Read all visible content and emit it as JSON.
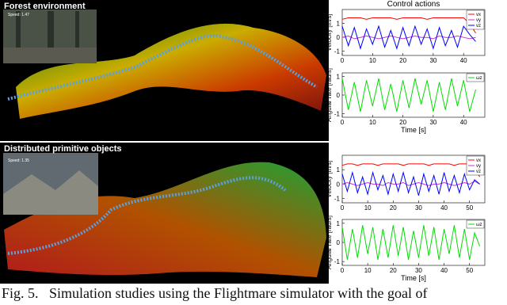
{
  "images": [
    {
      "label": "Forest environment",
      "inset_speed": "Speed: 1.47"
    },
    {
      "label": "Distributed primitive objects",
      "inset_speed": "Speed: 1.35"
    }
  ],
  "chart_data": [
    {
      "type": "line",
      "title": "Control actions",
      "ylabel": "Velocity [m/s]",
      "x": [
        0,
        2,
        4,
        6,
        8,
        10,
        12,
        14,
        16,
        18,
        20,
        22,
        24,
        26,
        28,
        30,
        32,
        34,
        36,
        38,
        40,
        42,
        44
      ],
      "series": [
        {
          "name": "vx",
          "color": "#ff0000",
          "values": [
            1.3,
            1.4,
            1.4,
            1.4,
            1.3,
            1.4,
            1.4,
            1.4,
            1.4,
            1.3,
            1.4,
            1.4,
            1.4,
            1.4,
            1.3,
            1.4,
            1.4,
            1.4,
            1.4,
            1.4,
            1.4,
            1.0,
            0.3
          ]
        },
        {
          "name": "vy",
          "color": "#cc33cc",
          "values": [
            0,
            0.1,
            -0.1,
            0,
            0.1,
            0,
            -0.1,
            0,
            0.1,
            0,
            -0.1,
            0,
            0.1,
            0,
            0,
            -0.1,
            0.1,
            0,
            0,
            0.1,
            0,
            -0.1,
            0
          ]
        },
        {
          "name": "vz",
          "color": "#0000ff",
          "values": [
            0.8,
            -0.6,
            0.7,
            -0.8,
            0.6,
            -0.5,
            0.8,
            -0.7,
            0.5,
            -0.8,
            0.7,
            -0.6,
            0.8,
            -0.5,
            0.6,
            -0.8,
            0.7,
            -0.6,
            0.5,
            -0.7,
            0.8,
            0.2,
            -0.3
          ]
        }
      ],
      "xlim": [
        0,
        47
      ],
      "ylim": [
        -1.3,
        2
      ],
      "xticks": [
        0,
        10,
        20,
        30,
        40
      ],
      "yticks": [
        -1,
        0,
        1
      ]
    },
    {
      "type": "line",
      "ylabel": "Angular rate [rad/s]",
      "xlabel": "Time [s]",
      "x": [
        0,
        2,
        4,
        6,
        8,
        10,
        12,
        14,
        16,
        18,
        20,
        22,
        24,
        26,
        28,
        30,
        32,
        34,
        36,
        38,
        40,
        42,
        44
      ],
      "series": [
        {
          "name": "ωz",
          "color": "#00dd00",
          "values": [
            0.9,
            -0.8,
            0.7,
            -0.9,
            0.8,
            -0.6,
            0.9,
            -0.8,
            0.6,
            -0.9,
            0.8,
            -0.7,
            0.9,
            -0.5,
            0.8,
            -0.9,
            0.7,
            -0.8,
            0.9,
            -0.6,
            0.8,
            -0.9,
            0.3
          ]
        }
      ],
      "xlim": [
        0,
        47
      ],
      "ylim": [
        -1.2,
        1.2
      ],
      "xticks": [
        0,
        10,
        20,
        30,
        40
      ],
      "yticks": [
        -1,
        0,
        1
      ]
    },
    {
      "type": "line",
      "ylabel": "Velocity [m/s]",
      "x": [
        0,
        2,
        4,
        6,
        8,
        10,
        12,
        14,
        16,
        18,
        20,
        22,
        24,
        26,
        28,
        30,
        32,
        34,
        36,
        38,
        40,
        42,
        44,
        46,
        48,
        50,
        52,
        54
      ],
      "series": [
        {
          "name": "vx",
          "color": "#ff0000",
          "values": [
            1.3,
            1.4,
            1.4,
            1.3,
            1.4,
            1.4,
            1.4,
            1.3,
            1.4,
            1.4,
            1.4,
            1.4,
            1.3,
            1.4,
            1.4,
            1.4,
            1.4,
            1.3,
            1.4,
            1.4,
            1.4,
            1.4,
            1.3,
            1.4,
            1.4,
            1.4,
            1.1,
            0.5
          ]
        },
        {
          "name": "vy",
          "color": "#cc33cc",
          "values": [
            0,
            0.1,
            0,
            -0.1,
            0,
            0.1,
            0,
            0,
            -0.1,
            0.1,
            0,
            0,
            0.1,
            -0.1,
            0,
            0.1,
            0,
            -0.1,
            0,
            0,
            0.1,
            0,
            -0.1,
            0,
            0.1,
            0,
            0.2,
            0
          ]
        },
        {
          "name": "vz",
          "color": "#0000ff",
          "values": [
            0.7,
            -0.5,
            0.8,
            -0.6,
            0.5,
            -0.7,
            0.8,
            -0.4,
            0.6,
            -0.7,
            0.7,
            -0.5,
            0.8,
            -0.6,
            0.5,
            -0.8,
            0.7,
            -0.5,
            0.6,
            -0.7,
            0.8,
            -0.5,
            0.6,
            -0.6,
            0.7,
            -0.4,
            0.3,
            0
          ]
        }
      ],
      "xlim": [
        0,
        56
      ],
      "ylim": [
        -1.3,
        2
      ],
      "xticks": [
        0,
        10,
        20,
        30,
        40,
        50
      ],
      "yticks": [
        -1,
        0,
        1
      ]
    },
    {
      "type": "line",
      "ylabel": "Angular rate [rad/s]",
      "xlabel": "Time [s]",
      "x": [
        0,
        2,
        4,
        6,
        8,
        10,
        12,
        14,
        16,
        18,
        20,
        22,
        24,
        26,
        28,
        30,
        32,
        34,
        36,
        38,
        40,
        42,
        44,
        46,
        48,
        50,
        52,
        54
      ],
      "series": [
        {
          "name": "ωz",
          "color": "#00dd00",
          "values": [
            0.8,
            -0.9,
            0.7,
            -0.8,
            0.9,
            -0.6,
            0.8,
            -0.9,
            0.7,
            -0.8,
            0.9,
            -0.7,
            0.8,
            -0.9,
            0.6,
            -0.8,
            0.9,
            -0.7,
            0.8,
            -0.9,
            0.7,
            -0.6,
            0.9,
            -0.8,
            0.7,
            -0.9,
            0.5,
            -0.2
          ]
        }
      ],
      "xlim": [
        0,
        56
      ],
      "ylim": [
        -1.2,
        1.2
      ],
      "xticks": [
        0,
        10,
        20,
        30,
        40,
        50
      ],
      "yticks": [
        -1,
        0,
        1
      ]
    }
  ],
  "caption": "Fig. 5.   Simulation studies using the Flightmare simulator with the goal of"
}
